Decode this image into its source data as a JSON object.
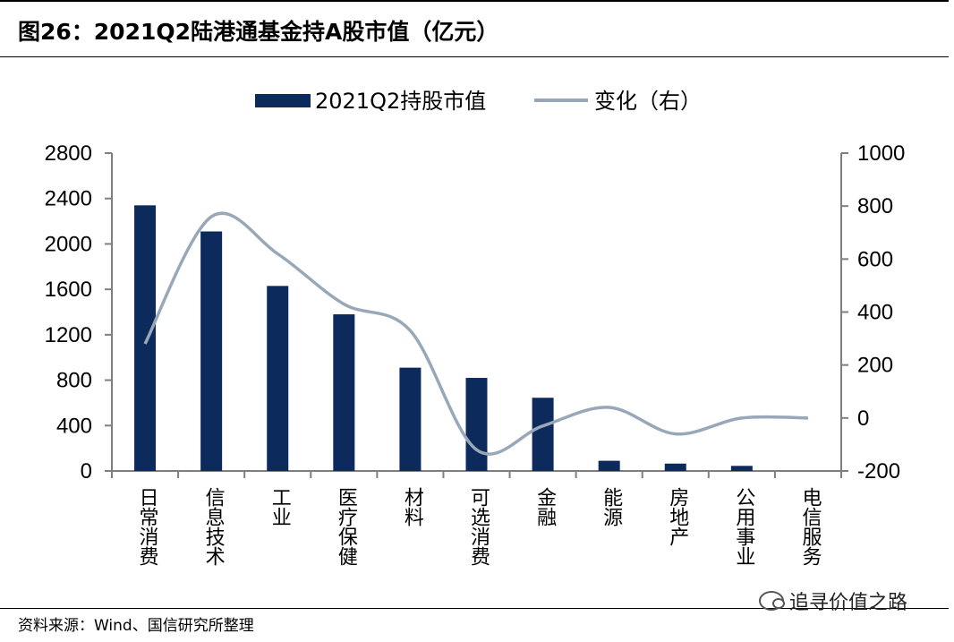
{
  "header": {
    "title": "图26：2021Q2陆港通基金持A股市值（亿元）"
  },
  "footer": {
    "source": "资料来源：Wind、国信研究所整理",
    "watermark": "追寻价值之路"
  },
  "chart_data": {
    "type": "bar",
    "categories": [
      "日常消费",
      "信息技术",
      "工业",
      "医疗保健",
      "材料",
      "可选消费",
      "金融",
      "能源",
      "房地产",
      "公用事业",
      "电信服务"
    ],
    "series": [
      {
        "name": "2021Q2持股市值",
        "type": "bar",
        "axis": "left",
        "values": [
          2340,
          2110,
          1630,
          1380,
          910,
          820,
          645,
          90,
          65,
          45,
          0
        ]
      },
      {
        "name": "变化（右）",
        "type": "line",
        "axis": "right",
        "values": [
          280,
          760,
          620,
          430,
          330,
          -120,
          -30,
          40,
          -60,
          0,
          0
        ]
      }
    ],
    "y_left": {
      "min": 0,
      "max": 2800,
      "ticks": [
        0,
        400,
        800,
        1200,
        1600,
        2000,
        2400,
        2800
      ]
    },
    "y_right": {
      "min": -200,
      "max": 1000,
      "ticks": [
        -200,
        0,
        200,
        400,
        600,
        800,
        1000
      ]
    },
    "legend": "top-center",
    "grid": false,
    "colors": {
      "bar": "#0d2a5c",
      "line": "#98a8b8"
    }
  }
}
